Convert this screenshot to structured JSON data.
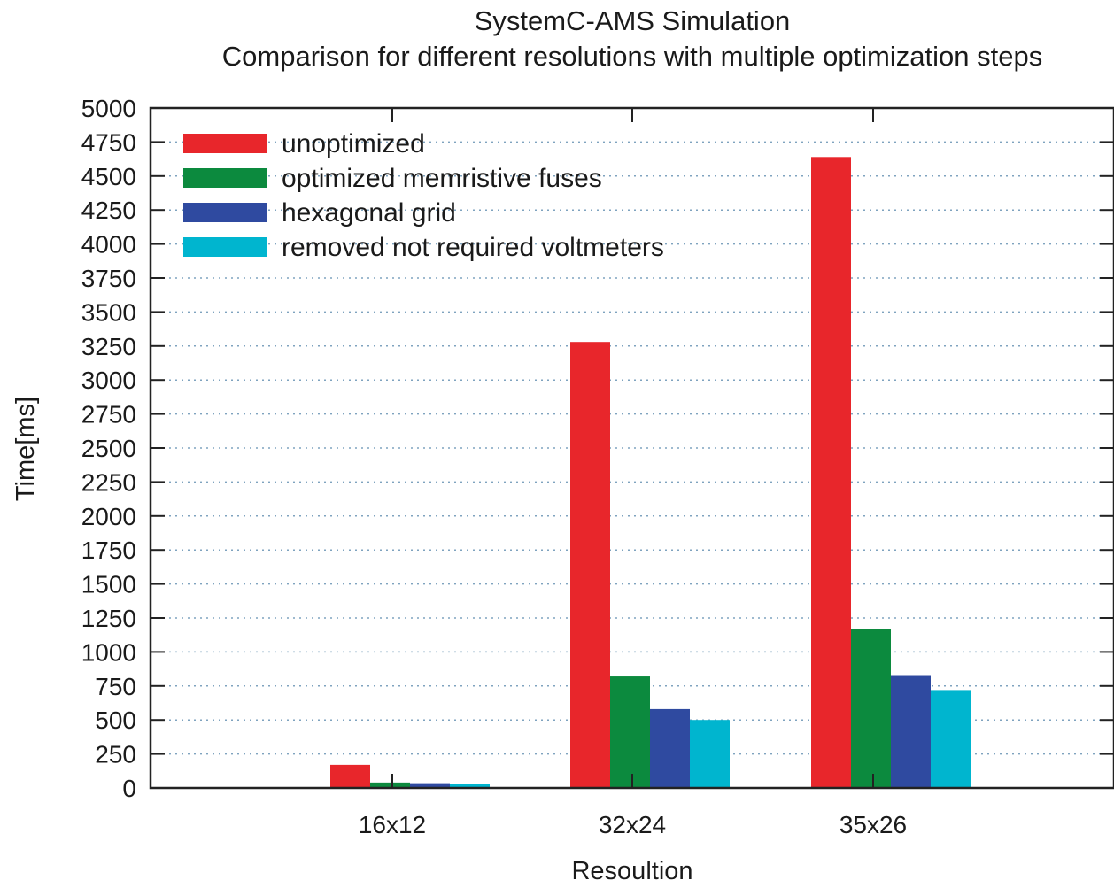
{
  "chart_data": {
    "type": "bar",
    "title": "SystemC-AMS Simulation",
    "subtitle": "Comparison for different resolutions with multiple optimization steps",
    "xlabel": "Resoultion",
    "ylabel": "Time[ms]",
    "ylim": [
      0,
      5000
    ],
    "yticks": [
      "0",
      "250",
      "500",
      "750",
      "1000",
      "1250",
      "1500",
      "1750",
      "2000",
      "2250",
      "2500",
      "2750",
      "3000",
      "3250",
      "3500",
      "3750",
      "4000",
      "4250",
      "4500",
      "4750",
      "5000"
    ],
    "categories": [
      "16x12",
      "32x24",
      "35x26"
    ],
    "series": [
      {
        "name": "unoptimized",
        "color": "#e8262b",
        "values": [
          170,
          3280,
          4640
        ]
      },
      {
        "name": "optimized memristive fuses",
        "color": "#0c8a3e",
        "values": [
          40,
          820,
          1170
        ]
      },
      {
        "name": "hexagonal grid",
        "color": "#2f4aa0",
        "values": [
          35,
          580,
          830
        ]
      },
      {
        "name": "removed not required voltmeters",
        "color": "#00b5cf",
        "values": [
          30,
          500,
          720
        ]
      }
    ],
    "grid": true,
    "legend_position": "top-left"
  }
}
